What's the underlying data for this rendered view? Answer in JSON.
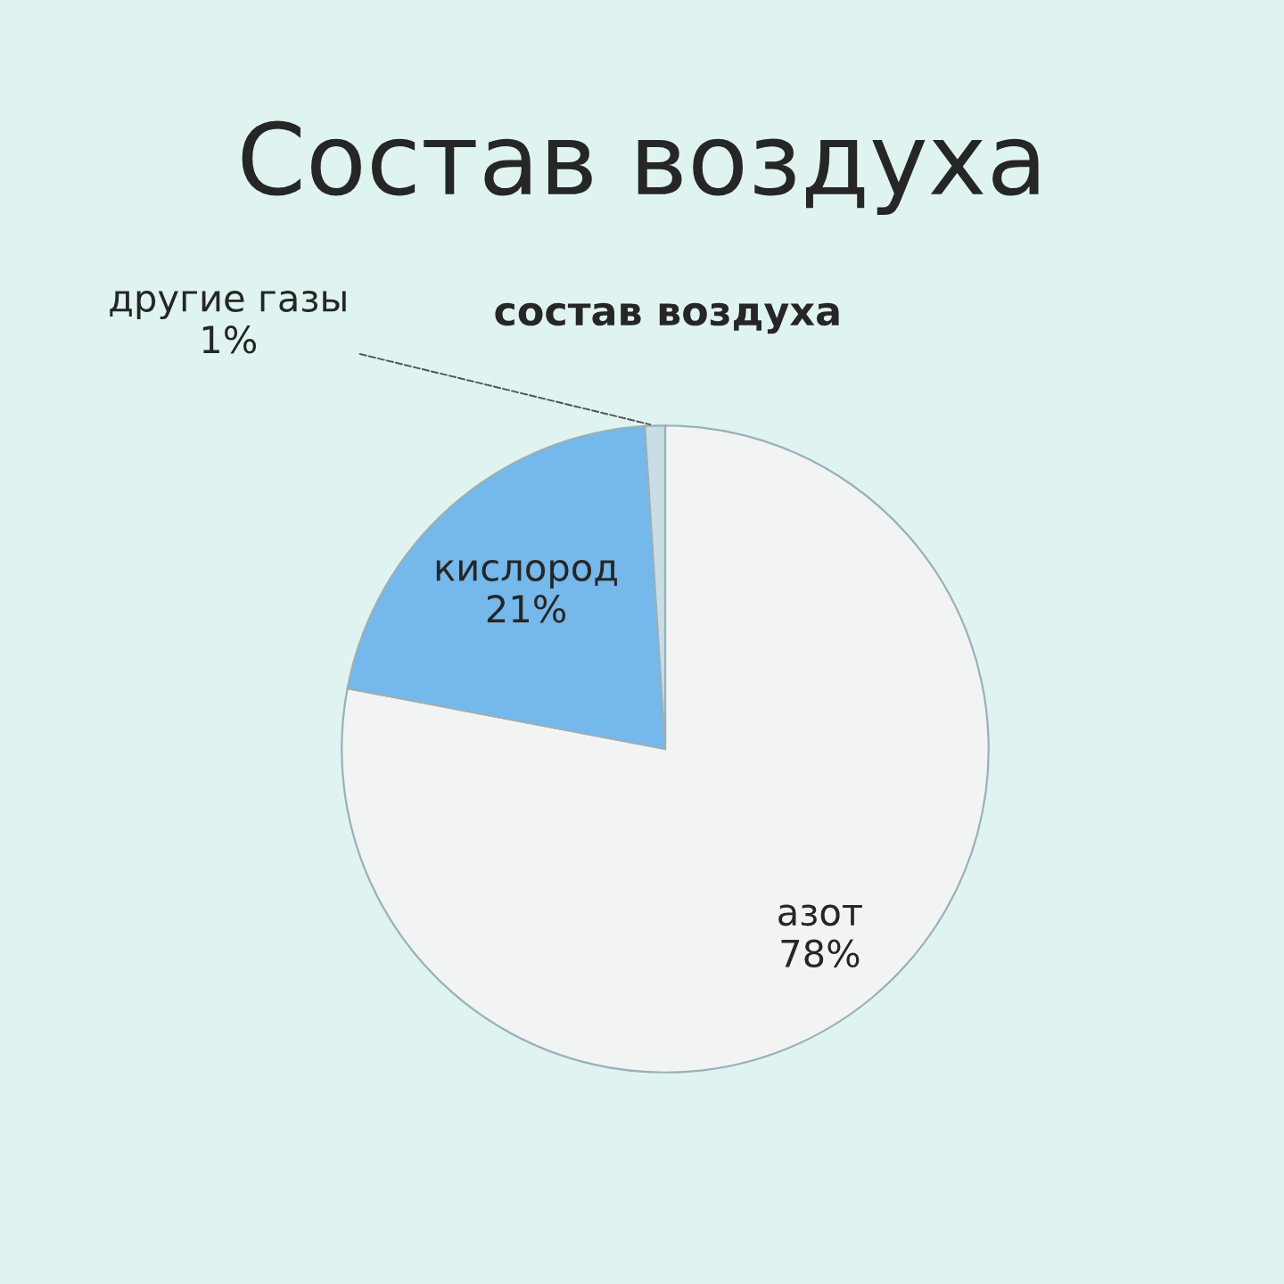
{
  "chart_data": {
    "type": "pie",
    "title": "Состав воздуха",
    "subtitle": "состав воздуха",
    "categories": [
      "азот",
      "кислород",
      "другие газы"
    ],
    "values": [
      78,
      21,
      1
    ],
    "value_labels": [
      "78%",
      "21%",
      "1%"
    ],
    "colors": [
      "#f2f4f4",
      "#74b8ec",
      "#c9dde6"
    ]
  }
}
